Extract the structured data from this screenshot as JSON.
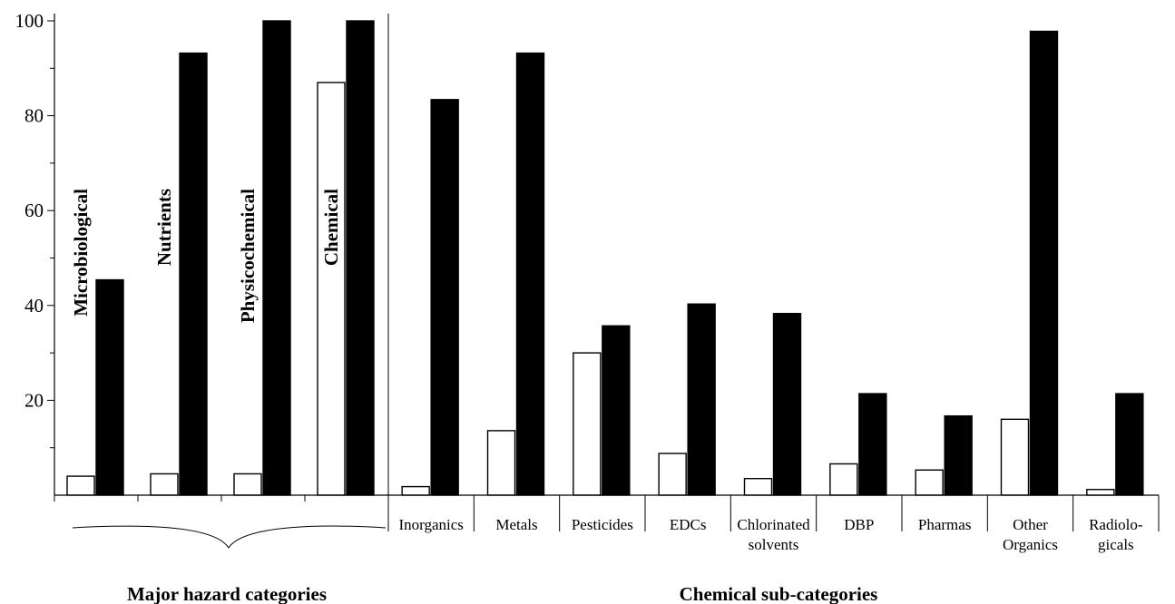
{
  "chart_data": {
    "type": "bar",
    "ylim": [
      0,
      100
    ],
    "yticks": [
      20,
      40,
      60,
      80,
      100
    ],
    "colors": {
      "open": "#ffffff",
      "filled": "#000000"
    },
    "groups": [
      {
        "label": "Major hazard categories",
        "categories": [
          "Microbiological",
          "Nutrients",
          "Physicochemical",
          "Chemical"
        ]
      },
      {
        "label": "Chemical sub-categories",
        "categories": [
          "Inorganics",
          "Metals",
          "Pesticides",
          "EDCs",
          "Chlorinated solvents",
          "DBP",
          "Pharmas",
          "Other Organics",
          "Radiolo-gicals"
        ]
      }
    ],
    "categories": [
      "Microbiological",
      "Nutrients",
      "Physicochemical",
      "Chemical",
      "Inorganics",
      "Metals",
      "Pesticides",
      "EDCs",
      "Chlorinated solvents",
      "DBP",
      "Pharmas",
      "Other Organics",
      "Radiolo-gicals"
    ],
    "category_label_lines": [
      [
        "Microbiological"
      ],
      [
        "Nutrients"
      ],
      [
        "Physicochemical"
      ],
      [
        "Chemical"
      ],
      [
        "Inorganics"
      ],
      [
        "Metals"
      ],
      [
        "Pesticides"
      ],
      [
        "EDCs"
      ],
      [
        "Chlorinated",
        "solvents"
      ],
      [
        "DBP"
      ],
      [
        "Pharmas"
      ],
      [
        "Other",
        "Organics"
      ],
      [
        "Radiolo-",
        "gicals"
      ]
    ],
    "series": [
      {
        "values": [
          4,
          4.5,
          4.5,
          87,
          1.8,
          13.6,
          30,
          8.8,
          3.5,
          6.6,
          5.3,
          16,
          1.2
        ]
      },
      {
        "values": [
          45.4,
          93.2,
          100,
          100,
          83.4,
          93.2,
          35.7,
          40.3,
          38.3,
          21.4,
          16.7,
          97.8,
          21.4
        ]
      }
    ]
  }
}
